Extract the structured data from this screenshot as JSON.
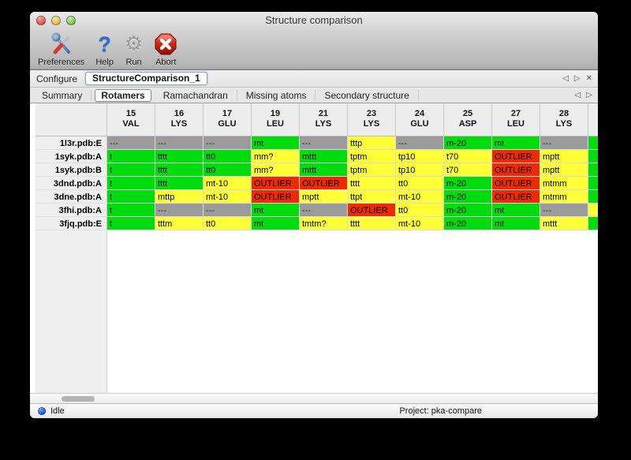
{
  "window": {
    "title": "Structure comparison"
  },
  "toolbar": {
    "buttons": [
      {
        "label": "Preferences",
        "icon": "tools-icon"
      },
      {
        "label": "Help",
        "icon": "question-icon"
      },
      {
        "label": "Run",
        "icon": "gear-icon"
      },
      {
        "label": "Abort",
        "icon": "stop-icon"
      }
    ]
  },
  "icons": {
    "help_glyph": "?",
    "gear_glyph": "⚙",
    "nav_left": "◁",
    "nav_right": "▷",
    "close": "✕"
  },
  "configure_bar": {
    "label": "Configure",
    "instance": "StructureComparison_1"
  },
  "tab_bar": {
    "tabs": [
      "Summary",
      "Rotamers",
      "Ramachandran",
      "Missing atoms",
      "Secondary structure"
    ],
    "active": "Rotamers"
  },
  "colors": {
    "green": "#00dc0e",
    "yellow": "#ffff37",
    "red": "#ee2b00",
    "gray": "#9b9b9b"
  },
  "rotamer_table": {
    "columns": [
      {
        "number": "15",
        "residue": "VAL"
      },
      {
        "number": "16",
        "residue": "LYS"
      },
      {
        "number": "17",
        "residue": "GLU"
      },
      {
        "number": "19",
        "residue": "LEU"
      },
      {
        "number": "21",
        "residue": "LYS"
      },
      {
        "number": "23",
        "residue": "LYS"
      },
      {
        "number": "24",
        "residue": "GLU"
      },
      {
        "number": "25",
        "residue": "ASP"
      },
      {
        "number": "27",
        "residue": "LEU"
      },
      {
        "number": "28",
        "residue": "LYS"
      }
    ],
    "rows": [
      {
        "label": "1l3r.pdb:E",
        "overflow": "green",
        "cells": [
          {
            "t": "---",
            "c": "gray"
          },
          {
            "t": "---",
            "c": "gray"
          },
          {
            "t": "---",
            "c": "gray"
          },
          {
            "t": "mt",
            "c": "green"
          },
          {
            "t": "---",
            "c": "gray"
          },
          {
            "t": "tttp",
            "c": "yellow"
          },
          {
            "t": "---",
            "c": "gray"
          },
          {
            "t": "m-20",
            "c": "green"
          },
          {
            "t": "mt",
            "c": "green"
          },
          {
            "t": "---",
            "c": "gray"
          }
        ]
      },
      {
        "label": "1syk.pdb:A",
        "overflow": "green",
        "cells": [
          {
            "t": "t",
            "c": "green"
          },
          {
            "t": "tttt",
            "c": "green"
          },
          {
            "t": "tt0",
            "c": "green"
          },
          {
            "t": "mm?",
            "c": "yellow"
          },
          {
            "t": "mttt",
            "c": "green"
          },
          {
            "t": "tptm",
            "c": "yellow"
          },
          {
            "t": "tp10",
            "c": "yellow"
          },
          {
            "t": "t70",
            "c": "yellow"
          },
          {
            "t": "OUTLIER",
            "c": "red"
          },
          {
            "t": "mptt",
            "c": "yellow"
          }
        ]
      },
      {
        "label": "1syk.pdb:B",
        "overflow": "green",
        "cells": [
          {
            "t": "t",
            "c": "green"
          },
          {
            "t": "tttt",
            "c": "green"
          },
          {
            "t": "tt0",
            "c": "green"
          },
          {
            "t": "mm?",
            "c": "yellow"
          },
          {
            "t": "mttt",
            "c": "green"
          },
          {
            "t": "tptm",
            "c": "yellow"
          },
          {
            "t": "tp10",
            "c": "yellow"
          },
          {
            "t": "t70",
            "c": "yellow"
          },
          {
            "t": "OUTLIER",
            "c": "red"
          },
          {
            "t": "mptt",
            "c": "yellow"
          }
        ]
      },
      {
        "label": "3dnd.pdb:A",
        "overflow": "green",
        "cells": [
          {
            "t": "t",
            "c": "green"
          },
          {
            "t": "tttt",
            "c": "green"
          },
          {
            "t": "mt-10",
            "c": "yellow"
          },
          {
            "t": "OUTLIER",
            "c": "red"
          },
          {
            "t": "OUTLIER",
            "c": "red"
          },
          {
            "t": "tttt",
            "c": "yellow"
          },
          {
            "t": "tt0",
            "c": "yellow"
          },
          {
            "t": "m-20",
            "c": "green"
          },
          {
            "t": "OUTLIER",
            "c": "red"
          },
          {
            "t": "mtmm",
            "c": "yellow"
          }
        ]
      },
      {
        "label": "3dne.pdb:A",
        "overflow": "green",
        "cells": [
          {
            "t": "t",
            "c": "green"
          },
          {
            "t": "mttp",
            "c": "yellow"
          },
          {
            "t": "mt-10",
            "c": "yellow"
          },
          {
            "t": "OUTLIER",
            "c": "red"
          },
          {
            "t": "mptt",
            "c": "yellow"
          },
          {
            "t": "ttpt",
            "c": "yellow"
          },
          {
            "t": "mt-10",
            "c": "yellow"
          },
          {
            "t": "m-20",
            "c": "green"
          },
          {
            "t": "OUTLIER",
            "c": "red"
          },
          {
            "t": "mtmm",
            "c": "yellow"
          }
        ]
      },
      {
        "label": "3fhi.pdb:A",
        "overflow": "yellow",
        "cells": [
          {
            "t": "t",
            "c": "green"
          },
          {
            "t": "---",
            "c": "gray"
          },
          {
            "t": "---",
            "c": "gray"
          },
          {
            "t": "mt",
            "c": "green"
          },
          {
            "t": "---",
            "c": "gray"
          },
          {
            "t": "OUTLIER",
            "c": "red"
          },
          {
            "t": "tt0",
            "c": "yellow"
          },
          {
            "t": "m-20",
            "c": "green"
          },
          {
            "t": "mt",
            "c": "green"
          },
          {
            "t": "---",
            "c": "gray"
          }
        ]
      },
      {
        "label": "3fjq.pdb:E",
        "overflow": "green",
        "cells": [
          {
            "t": "t",
            "c": "green"
          },
          {
            "t": "tttm",
            "c": "yellow"
          },
          {
            "t": "tt0",
            "c": "yellow"
          },
          {
            "t": "mt",
            "c": "green"
          },
          {
            "t": "tmtm?",
            "c": "yellow"
          },
          {
            "t": "tttt",
            "c": "yellow"
          },
          {
            "t": "mt-10",
            "c": "yellow"
          },
          {
            "t": "m-20",
            "c": "green"
          },
          {
            "t": "mt",
            "c": "green"
          },
          {
            "t": "mttt",
            "c": "yellow"
          }
        ]
      }
    ]
  },
  "status_bar": {
    "state": "Idle",
    "project": "Project: pka-compare"
  }
}
